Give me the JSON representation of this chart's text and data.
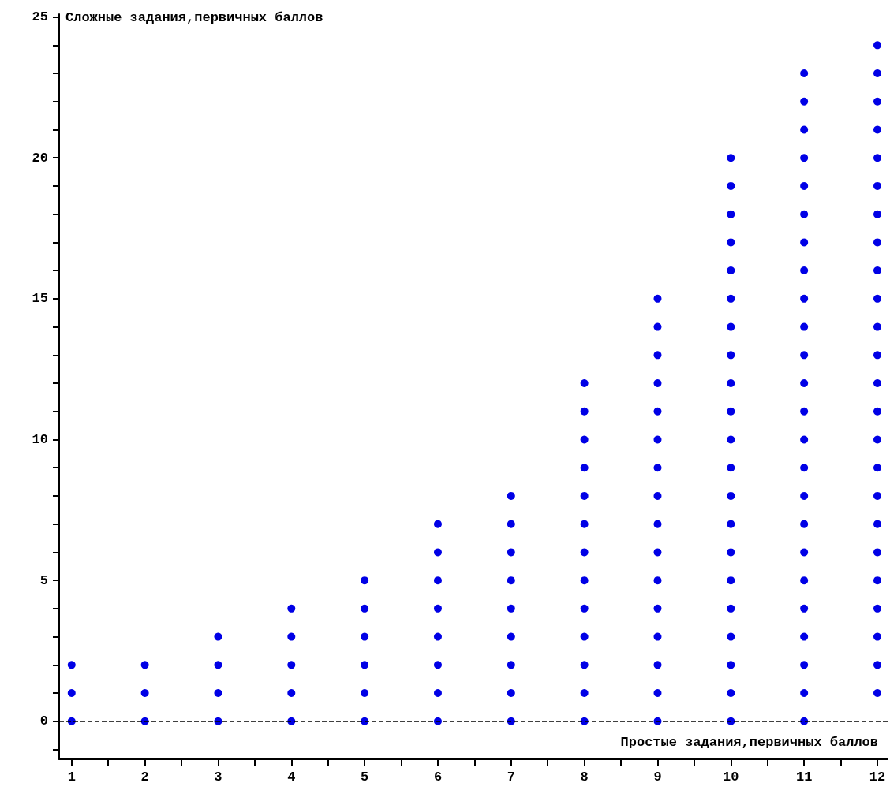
{
  "chart_data": {
    "type": "scatter",
    "xlabel": "Простые задания,первичных баллов",
    "ylabel": "Сложные задания,первичных баллов",
    "series": [
      {
        "color": "#0000e6",
        "x": [
          1,
          1,
          1,
          2,
          2,
          2,
          3,
          3,
          3,
          3,
          4,
          4,
          4,
          4,
          4,
          5,
          5,
          5,
          5,
          5,
          5,
          6,
          6,
          6,
          6,
          6,
          6,
          6,
          6,
          7,
          7,
          7,
          7,
          7,
          7,
          7,
          7,
          7,
          8,
          8,
          8,
          8,
          8,
          8,
          8,
          8,
          8,
          8,
          8,
          8,
          8,
          9,
          9,
          9,
          9,
          9,
          9,
          9,
          9,
          9,
          9,
          9,
          9,
          9,
          9,
          9,
          9,
          10,
          10,
          10,
          10,
          10,
          10,
          10,
          10,
          10,
          10,
          10,
          10,
          10,
          10,
          10,
          10,
          10,
          10,
          10,
          10,
          10,
          11,
          11,
          11,
          11,
          11,
          11,
          11,
          11,
          11,
          11,
          11,
          11,
          11,
          11,
          11,
          11,
          11,
          11,
          11,
          11,
          11,
          11,
          11,
          11,
          12,
          12,
          12,
          12,
          12,
          12,
          12,
          12,
          12,
          12,
          12,
          12,
          12,
          12,
          12,
          12,
          12,
          12,
          12,
          12,
          12,
          12,
          12,
          12
        ],
        "values": [
          0,
          1,
          2,
          0,
          1,
          2,
          0,
          1,
          2,
          3,
          0,
          1,
          2,
          3,
          4,
          0,
          1,
          2,
          3,
          4,
          5,
          0,
          1,
          2,
          3,
          4,
          5,
          6,
          7,
          0,
          1,
          2,
          3,
          4,
          5,
          6,
          7,
          8,
          0,
          1,
          2,
          3,
          4,
          5,
          6,
          7,
          8,
          9,
          10,
          11,
          12,
          0,
          1,
          2,
          3,
          4,
          5,
          6,
          7,
          8,
          9,
          10,
          11,
          12,
          13,
          14,
          15,
          0,
          1,
          2,
          3,
          4,
          5,
          6,
          7,
          8,
          9,
          10,
          11,
          12,
          13,
          14,
          15,
          16,
          17,
          18,
          19,
          20,
          0,
          1,
          2,
          3,
          4,
          5,
          6,
          7,
          8,
          9,
          10,
          11,
          12,
          13,
          14,
          15,
          16,
          17,
          18,
          19,
          20,
          21,
          22,
          23,
          1,
          2,
          3,
          4,
          5,
          6,
          7,
          8,
          9,
          10,
          11,
          12,
          13,
          14,
          15,
          16,
          17,
          18,
          19,
          20,
          21,
          22,
          23,
          24
        ]
      }
    ],
    "xlim": [
      0.83,
      12.14
    ],
    "ylim": [
      -1.35,
      25.1
    ],
    "xticks": [
      1,
      {
        "value": 1.5,
        "label": null
      },
      2,
      {
        "value": 2.5,
        "label": null
      },
      3,
      {
        "value": 3.5,
        "label": null
      },
      4,
      {
        "value": 4.5,
        "label": null
      },
      5,
      {
        "value": 5.5,
        "label": null
      },
      6,
      {
        "value": 6.5,
        "label": null
      },
      7,
      {
        "value": 7.5,
        "label": null
      },
      8,
      {
        "value": 8.5,
        "label": null
      },
      9,
      {
        "value": 9.5,
        "label": null
      },
      10,
      {
        "value": 10.5,
        "label": null
      },
      11,
      {
        "value": 11.5,
        "label": null
      },
      12
    ],
    "yticks": [
      {
        "value": -1,
        "label": null
      },
      0,
      {
        "value": 1,
        "label": null
      },
      {
        "value": 2,
        "label": null
      },
      {
        "value": 3,
        "label": null
      },
      {
        "value": 4,
        "label": null
      },
      5,
      {
        "value": 6,
        "label": null
      },
      {
        "value": 7,
        "label": null
      },
      {
        "value": 8,
        "label": null
      },
      {
        "value": 9,
        "label": null
      },
      10,
      {
        "value": 11,
        "label": null
      },
      {
        "value": 12,
        "label": null
      },
      {
        "value": 13,
        "label": null
      },
      {
        "value": 14,
        "label": null
      },
      15,
      {
        "value": 16,
        "label": null
      },
      {
        "value": 17,
        "label": null
      },
      {
        "value": 18,
        "label": null
      },
      {
        "value": 19,
        "label": null
      },
      20,
      {
        "value": 21,
        "label": null
      },
      {
        "value": 22,
        "label": null
      },
      {
        "value": 23,
        "label": null
      },
      {
        "value": 24,
        "label": null
      },
      25
    ],
    "ref_lines": [
      {
        "axis": "y",
        "value": 0,
        "color": "#000000",
        "line_style": "dashed"
      }
    ],
    "grid": false,
    "marker": "circle"
  }
}
